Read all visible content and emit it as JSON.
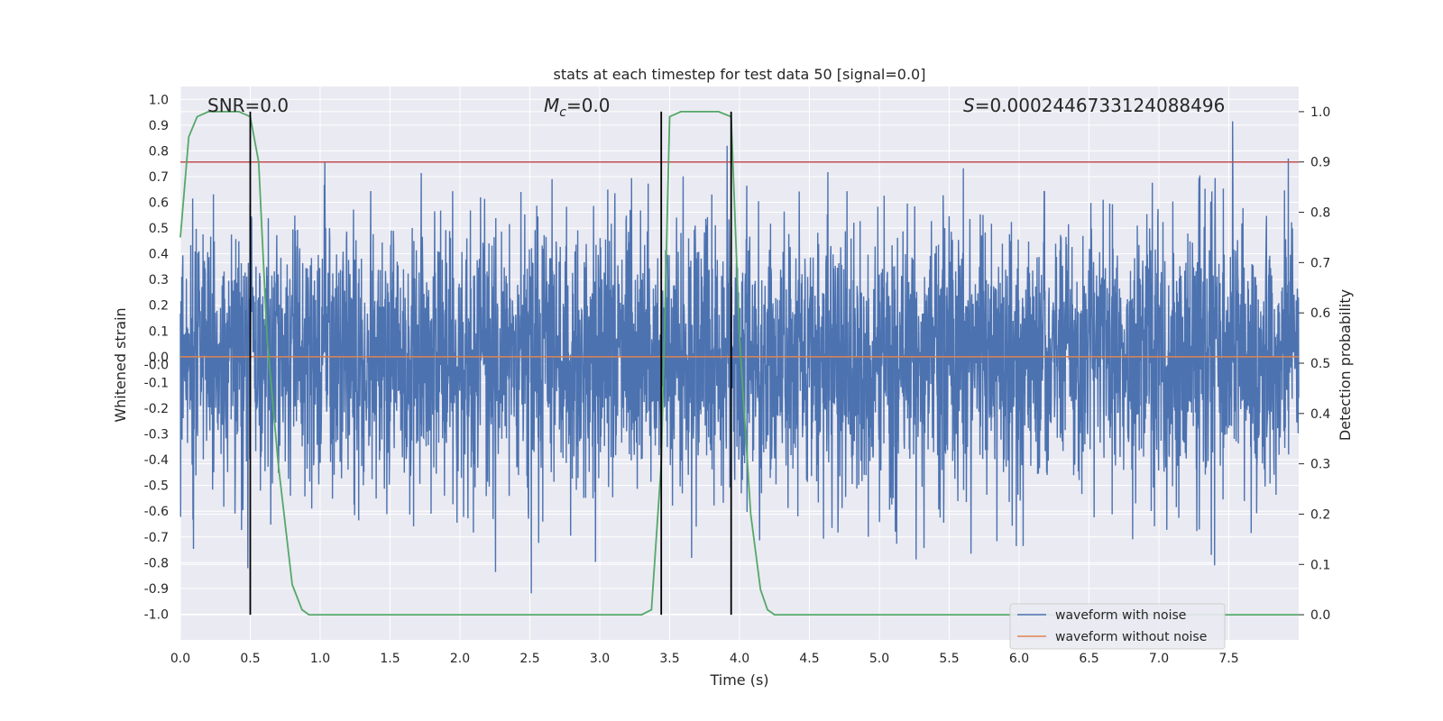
{
  "chart_data": {
    "type": "line",
    "title": "stats at each timestep for test data 50 [signal=0.0]",
    "xlabel": "Time (s)",
    "ylabel_left": "Whitened strain",
    "ylabel_right": "Detection probability",
    "xlim": [
      0.0,
      8.0
    ],
    "ylim_left": [
      -1.1,
      1.05
    ],
    "ylim_right": [
      -0.05,
      1.05
    ],
    "x_ticks": [
      "0.0",
      "0.5",
      "1.0",
      "1.5",
      "2.0",
      "2.5",
      "3.0",
      "3.5",
      "4.0",
      "4.5",
      "5.0",
      "5.5",
      "6.0",
      "6.5",
      "7.0",
      "7.5"
    ],
    "y_ticks_left": [
      "1.0",
      "0.9",
      "0.8",
      "0.7",
      "0.6",
      "0.5",
      "0.4",
      "0.3",
      "0.2",
      "0.1",
      "0.0",
      "-0.0",
      "-0.1",
      "-0.2",
      "-0.3",
      "-0.4",
      "-0.5",
      "-0.6",
      "-0.7",
      "-0.8",
      "-0.9",
      "-1.0"
    ],
    "y_ticks_right": [
      "1.0",
      "0.9",
      "0.8",
      "0.7",
      "0.6",
      "0.5",
      "0.4",
      "0.3",
      "0.2",
      "0.1",
      "0.0"
    ],
    "grid": true,
    "annotations": {
      "snr": "SNR=0.0",
      "mc_symbol": "M",
      "mc_sub": "c",
      "mc_value": "=0.0",
      "s_symbol": "S",
      "s_value": "=0.0002446733124088496"
    },
    "threshold_right": 0.9,
    "vertical_lines_x": [
      0.5,
      3.44,
      3.94
    ],
    "series": [
      {
        "name": "waveform with noise",
        "color": "#4c72b0",
        "axis": "left",
        "note_style": "dense noise, amplitude roughly within [-0.9, 0.9]"
      },
      {
        "name": "waveform without noise",
        "color": "#dd8452",
        "axis": "left",
        "x": [
          0.0,
          8.0
        ],
        "y": [
          0.0,
          0.0
        ]
      },
      {
        "name": "",
        "color": "#55a868",
        "axis": "right",
        "x": [
          0.0,
          0.06,
          0.12,
          0.2,
          0.3,
          0.42,
          0.5,
          0.56,
          0.62,
          0.7,
          0.8,
          0.87,
          0.92,
          1.0,
          2.0,
          3.0,
          3.3,
          3.37,
          3.44,
          3.5,
          3.58,
          3.7,
          3.85,
          3.94,
          4.0,
          4.08,
          4.15,
          4.2,
          4.25,
          4.3,
          5.0,
          6.0,
          7.0,
          8.0
        ],
        "y": [
          0.75,
          0.95,
          0.99,
          1.0,
          1.0,
          1.0,
          0.99,
          0.9,
          0.55,
          0.3,
          0.06,
          0.01,
          0.0,
          0.0,
          0.0,
          0.0,
          0.0,
          0.01,
          0.3,
          0.99,
          1.0,
          1.0,
          1.0,
          0.99,
          0.55,
          0.2,
          0.05,
          0.01,
          0.0,
          0.0,
          0.0,
          0.0,
          0.0,
          0.0
        ]
      },
      {
        "name": "",
        "color": "#c44e52",
        "axis": "right",
        "x": [
          0.0,
          8.0
        ],
        "y": [
          0.9,
          0.9
        ]
      }
    ],
    "legend": {
      "placement": "lower-right",
      "entries": [
        {
          "label": "waveform with noise",
          "color": "#4c72b0"
        },
        {
          "label": "waveform without noise",
          "color": "#dd8452"
        }
      ]
    },
    "colors": {
      "plot_bg": "#eaeaf2",
      "grid": "#ffffff",
      "vline": "#000000"
    }
  }
}
